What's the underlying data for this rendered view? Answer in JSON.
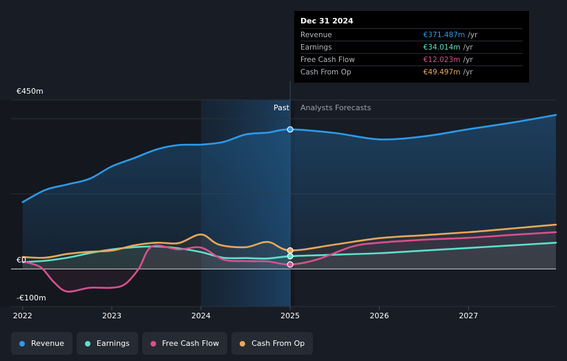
{
  "chart_data": {
    "type": "line",
    "x_ticks": [
      "2022",
      "2023",
      "2024",
      "2025",
      "2026",
      "2027"
    ],
    "xlim": [
      2021.87,
      2027.98
    ],
    "ylim": [
      -100,
      450
    ],
    "y_labels": {
      "top": "€450m",
      "zero": "€0",
      "bottom": "-€100m"
    },
    "divider_x": 2025.0,
    "shade_start": 2024.0,
    "regions": {
      "past": "Past",
      "forecast": "Analysts Forecasts"
    },
    "series": [
      {
        "name": "Revenue",
        "color": "#2d9be8",
        "fill": true,
        "x": [
          2022.0,
          2022.25,
          2022.5,
          2022.75,
          2023.0,
          2023.25,
          2023.5,
          2023.75,
          2024.0,
          2024.25,
          2024.5,
          2024.75,
          2025.0,
          2025.5,
          2026.0,
          2026.5,
          2027.0,
          2027.5,
          2027.98
        ],
        "values": [
          178,
          210,
          225,
          240,
          273,
          295,
          318,
          330,
          331,
          338,
          358,
          363,
          371.5,
          362,
          345,
          353,
          372,
          390,
          410
        ]
      },
      {
        "name": "Earnings",
        "color": "#5fe0cc",
        "fill": false,
        "x": [
          2022.0,
          2022.25,
          2022.5,
          2022.75,
          2023.0,
          2023.25,
          2023.5,
          2023.75,
          2024.0,
          2024.25,
          2024.5,
          2024.75,
          2025.0,
          2025.5,
          2026.0,
          2026.5,
          2027.0,
          2027.5,
          2027.98
        ],
        "values": [
          18,
          22,
          30,
          42,
          52,
          58,
          60,
          55,
          45,
          30,
          29,
          28,
          34,
          38,
          42,
          49,
          56,
          63,
          70
        ]
      },
      {
        "name": "Free Cash Flow",
        "color": "#d9508f",
        "fill": false,
        "x": [
          2022.0,
          2022.2,
          2022.35,
          2022.5,
          2022.75,
          2023.0,
          2023.15,
          2023.3,
          2023.45,
          2023.75,
          2024.0,
          2024.25,
          2024.5,
          2024.75,
          2025.0,
          2025.3,
          2025.7,
          2026.0,
          2026.5,
          2027.0,
          2027.5,
          2027.98
        ],
        "values": [
          20,
          5,
          -35,
          -60,
          -50,
          -50,
          -40,
          0,
          60,
          52,
          57,
          25,
          21,
          20,
          12,
          25,
          60,
          70,
          78,
          83,
          91,
          98
        ]
      },
      {
        "name": "Cash From Op",
        "color": "#e8a85a",
        "fill": false,
        "x": [
          2022.0,
          2022.25,
          2022.5,
          2022.75,
          2023.0,
          2023.25,
          2023.5,
          2023.75,
          2024.0,
          2024.2,
          2024.5,
          2024.75,
          2025.0,
          2025.5,
          2026.0,
          2026.5,
          2027.0,
          2027.5,
          2027.98
        ],
        "values": [
          32,
          30,
          40,
          46,
          49,
          63,
          70,
          69,
          92,
          65,
          58,
          72,
          49.5,
          65,
          82,
          90,
          98,
          108,
          118
        ]
      }
    ]
  },
  "tooltip": {
    "date": "Dec 31 2024",
    "rows": [
      {
        "label": "Revenue",
        "value": "€371.487m",
        "unit": "/yr",
        "color": "#2d9be8"
      },
      {
        "label": "Earnings",
        "value": "€34.014m",
        "unit": "/yr",
        "color": "#5fe0cc"
      },
      {
        "label": "Free Cash Flow",
        "value": "€12.023m",
        "unit": "/yr",
        "color": "#d9508f"
      },
      {
        "label": "Cash From Op",
        "value": "€49.497m",
        "unit": "/yr",
        "color": "#e8a85a"
      }
    ]
  },
  "legend": [
    {
      "label": "Revenue",
      "color": "#2d9be8"
    },
    {
      "label": "Earnings",
      "color": "#5fe0cc"
    },
    {
      "label": "Free Cash Flow",
      "color": "#d9508f"
    },
    {
      "label": "Cash From Op",
      "color": "#e8a85a"
    }
  ]
}
